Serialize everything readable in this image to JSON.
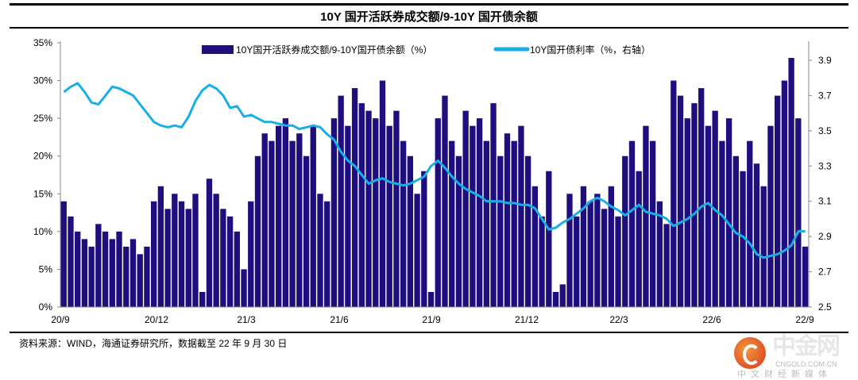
{
  "title": "10Y 国开活跃券成交额/9-10Y 国开债余额",
  "source": "资料来源：WIND，海通证券研究所，数据截至 22 年 9 月 30 日",
  "watermark": {
    "brand": "中金网",
    "domain": "CNGOLD.COM.CN",
    "tagline": "中文财经新媒体"
  },
  "chart_data": {
    "type": "bar+line",
    "title": "10Y 国开活跃券成交额/9-10Y 国开债余额",
    "x_ticks": [
      "20/9",
      "20/12",
      "21/3",
      "21/6",
      "21/9",
      "21/12",
      "22/3",
      "22/6",
      "22/9"
    ],
    "y_left": {
      "ticks": [
        "0%",
        "5%",
        "10%",
        "15%",
        "20%",
        "25%",
        "30%",
        "35%"
      ],
      "range": [
        0,
        35
      ]
    },
    "y_right": {
      "ticks": [
        "2.5",
        "2.7",
        "2.9",
        "3.1",
        "3.3",
        "3.5",
        "3.7",
        "3.9"
      ],
      "range": [
        2.5,
        3.9
      ]
    },
    "legend_position": "top",
    "colors": {
      "bar": "#1f0f7e",
      "line": "#1aaee6"
    },
    "series": [
      {
        "name": "10Y国开活跃券成交额/9-10Y国开债余额（%）",
        "type": "bar",
        "axis": "left",
        "values": [
          14,
          12,
          10,
          9,
          8,
          11,
          10,
          9,
          10,
          8,
          9,
          7,
          8,
          14,
          16,
          13,
          15,
          14,
          13,
          15,
          2,
          17,
          15,
          13,
          12,
          10,
          5,
          14,
          20,
          23,
          22,
          24,
          25,
          22,
          23,
          20,
          24,
          15,
          14,
          25,
          28,
          24,
          29,
          27,
          26,
          25,
          30,
          24,
          26,
          22,
          20,
          15,
          18,
          2,
          25,
          28,
          22,
          20,
          26,
          24,
          25,
          22,
          27,
          20,
          23,
          22,
          24,
          20,
          16,
          12,
          18,
          2,
          3,
          15,
          12,
          16,
          14,
          15,
          13,
          16,
          12,
          20,
          22,
          18,
          24,
          22,
          14,
          11,
          30,
          28,
          25,
          27,
          29,
          24,
          26,
          22,
          25,
          20,
          18,
          22,
          19,
          16,
          24,
          28,
          30,
          33,
          25,
          8
        ]
      },
      {
        "name": "10Y国开债利率（%，右轴）",
        "type": "line",
        "axis": "right",
        "values": [
          3.72,
          3.75,
          3.77,
          3.72,
          3.66,
          3.65,
          3.7,
          3.75,
          3.74,
          3.72,
          3.7,
          3.65,
          3.6,
          3.55,
          3.53,
          3.52,
          3.53,
          3.52,
          3.58,
          3.67,
          3.73,
          3.76,
          3.74,
          3.7,
          3.63,
          3.64,
          3.58,
          3.59,
          3.57,
          3.55,
          3.55,
          3.54,
          3.53,
          3.53,
          3.51,
          3.52,
          3.53,
          3.52,
          3.48,
          3.45,
          3.38,
          3.33,
          3.3,
          3.25,
          3.2,
          3.22,
          3.23,
          3.21,
          3.2,
          3.19,
          3.2,
          3.22,
          3.24,
          3.3,
          3.33,
          3.29,
          3.24,
          3.2,
          3.17,
          3.15,
          3.13,
          3.1,
          3.1,
          3.1,
          3.09,
          3.09,
          3.08,
          3.08,
          3.06,
          3.0,
          2.94,
          2.95,
          2.98,
          3.0,
          3.03,
          3.06,
          3.1,
          3.12,
          3.1,
          3.07,
          3.05,
          3.02,
          3.05,
          3.08,
          3.04,
          3.03,
          3.02,
          3.0,
          2.96,
          2.98,
          3.0,
          3.03,
          3.07,
          3.09,
          3.05,
          3.02,
          2.97,
          2.92,
          2.9,
          2.86,
          2.8,
          2.78,
          2.79,
          2.8,
          2.82,
          2.85,
          2.93,
          2.93
        ]
      }
    ]
  }
}
